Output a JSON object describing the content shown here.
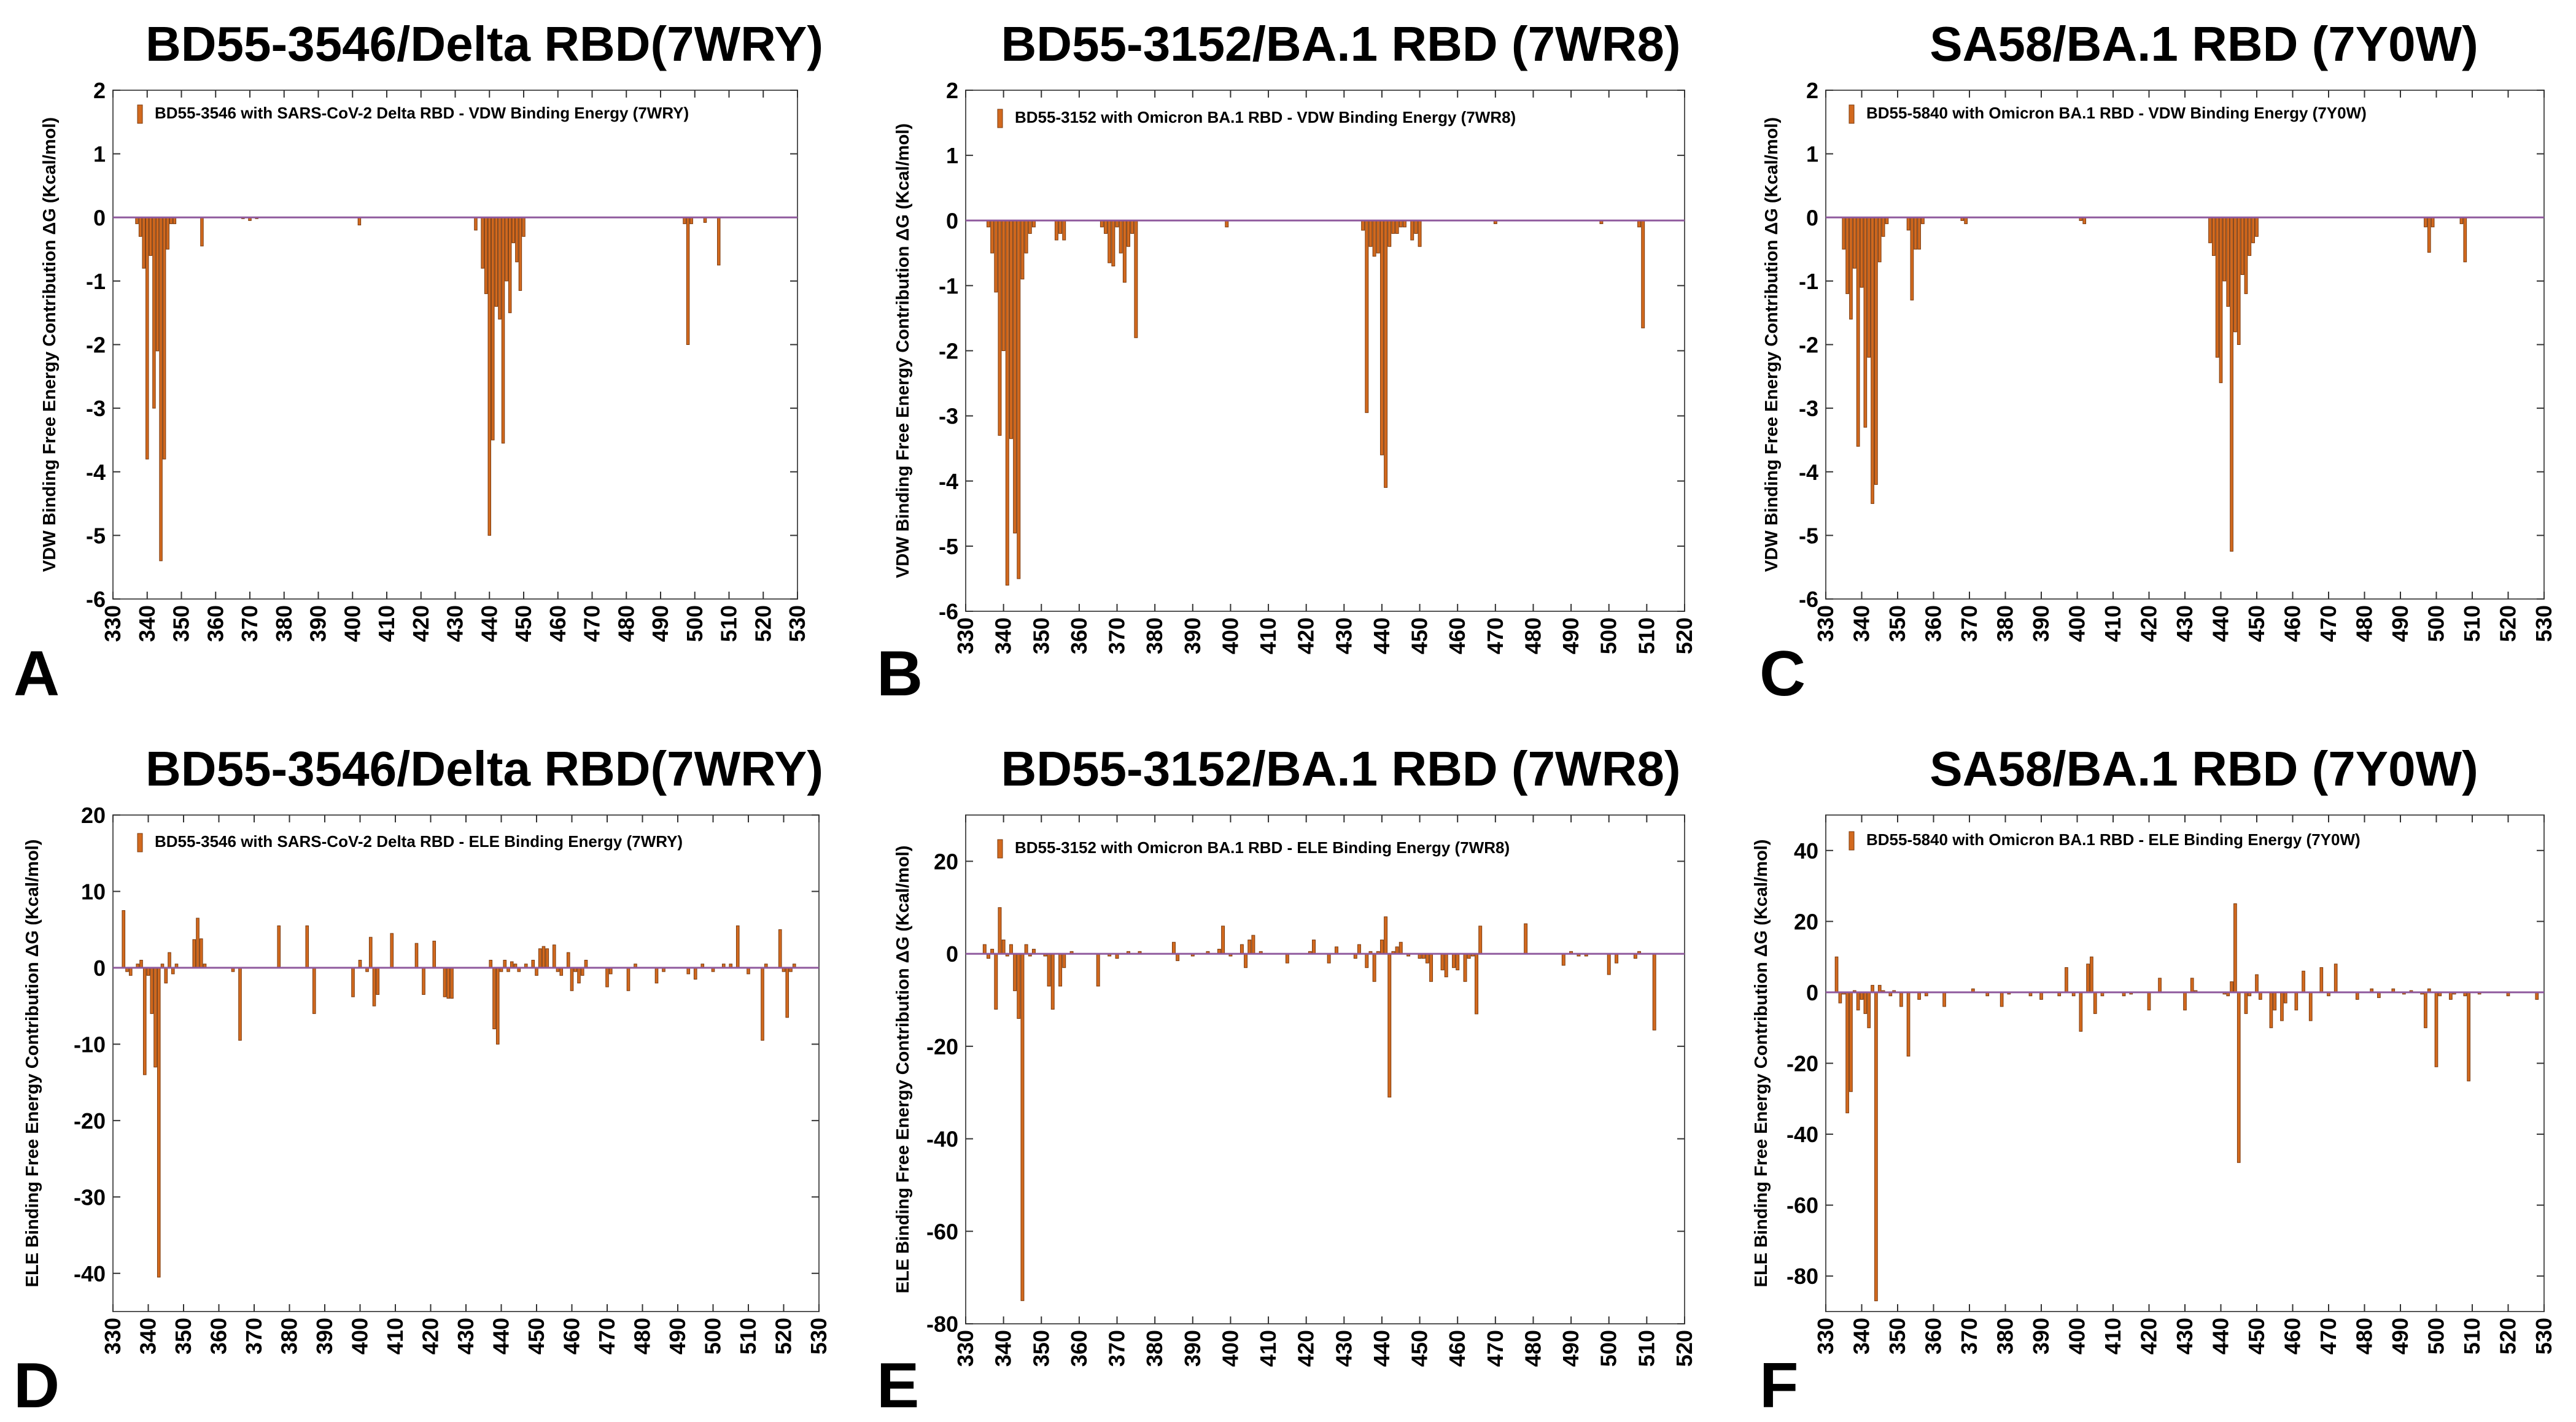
{
  "figure": {
    "bar_color": "#d2691e",
    "bar_edge": "#7a3a0e",
    "baseline_color": "#8f5a9e",
    "frame_color": "#555555"
  },
  "chart_data": [
    {
      "type": "bar",
      "letter": "A",
      "title": "BD55-3546/Delta RBD(7WRY)",
      "legend": "BD55-3546 with SARS-CoV-2 Delta RBD -  VDW Binding Energy (7WRY)",
      "ylabel": "VDW  Binding Free Energy Contribution   ΔG (Kcal/mol)",
      "ylim": [
        -6,
        2
      ],
      "yticks": [
        2,
        1,
        0,
        -1,
        -2,
        -3,
        -4,
        -5,
        -6
      ],
      "xlim": [
        330,
        530
      ],
      "xticks": [
        330,
        340,
        350,
        360,
        370,
        380,
        390,
        400,
        410,
        420,
        430,
        440,
        450,
        460,
        470,
        480,
        490,
        500,
        510,
        520,
        530
      ],
      "residues": [
        337,
        338,
        339,
        340,
        341,
        342,
        343,
        344,
        345,
        346,
        347,
        348,
        356,
        368,
        370,
        372,
        402,
        436,
        438,
        439,
        440,
        441,
        442,
        443,
        444,
        445,
        446,
        447,
        448,
        449,
        450,
        497,
        498,
        499,
        503,
        507
      ],
      "values": [
        -0.1,
        -0.3,
        -0.8,
        -3.8,
        -0.6,
        -3.0,
        -2.1,
        -5.4,
        -3.8,
        -0.5,
        -0.1,
        -0.1,
        -0.45,
        -0.02,
        -0.05,
        -0.02,
        -0.12,
        -0.2,
        -0.8,
        -1.2,
        -5.0,
        -3.5,
        -1.4,
        -1.6,
        -3.55,
        -1.0,
        -1.5,
        -0.4,
        -0.7,
        -1.15,
        -0.3,
        -0.1,
        -2.0,
        -0.1,
        -0.08,
        -0.75
      ]
    },
    {
      "type": "bar",
      "letter": "B",
      "title": "BD55-3152/BA.1 RBD (7WR8)",
      "legend": "BD55-3152 with Omicron BA.1 RBD -  VDW Binding Energy (7WR8)",
      "ylabel": "VDW  Binding Free Energy Contribution   ΔG (Kcal/mol)",
      "ylim": [
        -6,
        2
      ],
      "yticks": [
        2,
        1,
        0,
        -1,
        -2,
        -3,
        -4,
        -5,
        -6
      ],
      "xlim": [
        330,
        520
      ],
      "xticks": [
        330,
        340,
        350,
        360,
        370,
        380,
        390,
        400,
        410,
        420,
        430,
        440,
        450,
        460,
        470,
        480,
        490,
        500,
        510,
        520
      ],
      "residues": [
        336,
        337,
        338,
        339,
        340,
        341,
        342,
        343,
        344,
        345,
        346,
        347,
        348,
        354,
        355,
        356,
        366,
        367,
        368,
        369,
        370,
        371,
        372,
        373,
        374,
        375,
        399,
        435,
        436,
        437,
        438,
        439,
        440,
        441,
        442,
        443,
        444,
        445,
        446,
        448,
        449,
        450,
        470,
        498,
        508,
        509
      ],
      "values": [
        -0.1,
        -0.5,
        -1.1,
        -3.3,
        -2.0,
        -5.6,
        -3.35,
        -4.8,
        -5.5,
        -0.9,
        -0.5,
        -0.2,
        -0.1,
        -0.3,
        -0.2,
        -0.3,
        -0.1,
        -0.2,
        -0.65,
        -0.7,
        -0.1,
        -0.5,
        -0.95,
        -0.4,
        -0.2,
        -1.8,
        -0.1,
        -0.15,
        -2.95,
        -0.4,
        -0.55,
        -0.5,
        -3.6,
        -4.1,
        -0.4,
        -0.2,
        -0.2,
        -0.1,
        -0.1,
        -0.3,
        -0.2,
        -0.4,
        -0.05,
        -0.05,
        -0.1,
        -1.65
      ]
    },
    {
      "type": "bar",
      "letter": "C",
      "title": "SA58/BA.1 RBD (7Y0W)",
      "legend": "BD55-5840 with Omicron BA.1 RBD -  VDW Binding Energy (7Y0W)",
      "ylabel": "VDW Binding Free Energy Contribution   ΔG (Kcal/mol)",
      "ylim": [
        -6,
        2
      ],
      "yticks": [
        2,
        1,
        0,
        -1,
        -2,
        -3,
        -4,
        -5,
        -6
      ],
      "xlim": [
        330,
        530
      ],
      "xticks": [
        330,
        340,
        350,
        360,
        370,
        380,
        390,
        400,
        410,
        420,
        430,
        440,
        450,
        460,
        470,
        480,
        490,
        500,
        510,
        520,
        530
      ],
      "residues": [
        335,
        336,
        337,
        338,
        339,
        340,
        341,
        342,
        343,
        344,
        345,
        346,
        347,
        353,
        354,
        355,
        356,
        357,
        368,
        369,
        401,
        402,
        437,
        438,
        439,
        440,
        441,
        442,
        443,
        444,
        445,
        446,
        447,
        448,
        449,
        450,
        497,
        498,
        499,
        507,
        508
      ],
      "values": [
        -0.5,
        -1.2,
        -1.6,
        -0.8,
        -3.6,
        -1.1,
        -3.3,
        -2.2,
        -4.5,
        -4.2,
        -0.7,
        -0.3,
        -0.1,
        -0.2,
        -1.3,
        -0.5,
        -0.5,
        -0.1,
        -0.05,
        -0.1,
        -0.05,
        -0.1,
        -0.4,
        -0.6,
        -2.2,
        -2.6,
        -1.0,
        -1.4,
        -5.25,
        -1.8,
        -2.0,
        -0.9,
        -1.2,
        -0.6,
        -0.4,
        -0.3,
        -0.15,
        -0.55,
        -0.15,
        -0.1,
        -0.7
      ]
    },
    {
      "type": "bar",
      "letter": "D",
      "title": "BD55-3546/Delta RBD(7WRY)",
      "legend": "BD55-3546 with SARS-CoV-2 Delta RBD -  ELE Binding Energy (7WRY)",
      "ylabel": "ELE Binding Free Energy Contribution   ΔG (Kcal/mol)",
      "ylim": [
        -45,
        20
      ],
      "yticks": [
        20,
        10,
        0,
        -10,
        -20,
        -30,
        -40
      ],
      "xlim": [
        330,
        530
      ],
      "xticks": [
        330,
        340,
        350,
        360,
        370,
        380,
        390,
        400,
        410,
        420,
        430,
        440,
        450,
        460,
        470,
        480,
        490,
        500,
        510,
        520,
        530
      ],
      "residues": [
        333,
        334,
        335,
        337,
        338,
        339,
        340,
        341,
        342,
        343,
        344,
        345,
        346,
        347,
        348,
        353,
        354,
        355,
        356,
        364,
        366,
        377,
        385,
        387,
        398,
        400,
        402,
        403,
        404,
        405,
        409,
        416,
        418,
        421,
        424,
        425,
        426,
        437,
        438,
        439,
        440,
        441,
        442,
        443,
        444,
        445,
        447,
        449,
        450,
        451,
        452,
        453,
        455,
        456,
        457,
        459,
        460,
        461,
        462,
        463,
        464,
        470,
        471,
        476,
        478,
        484,
        486,
        493,
        495,
        497,
        500,
        503,
        505,
        507,
        510,
        514,
        515,
        519,
        520,
        521,
        522,
        523
      ],
      "values": [
        7.5,
        -0.5,
        -1.0,
        0.5,
        1.0,
        -14,
        -1.0,
        -6.0,
        -13.0,
        -40.5,
        0.5,
        -2.0,
        2.0,
        -0.8,
        0.5,
        3.7,
        6.5,
        3.8,
        0.5,
        -0.5,
        -9.5,
        5.5,
        5.5,
        -6.0,
        -3.8,
        1.0,
        -0.5,
        4.0,
        -5.0,
        -3.5,
        4.5,
        3.2,
        -3.5,
        3.5,
        -3.8,
        -4.0,
        -4.0,
        1.0,
        -8.0,
        -10.0,
        -0.5,
        1.0,
        -0.5,
        0.8,
        0.5,
        -0.5,
        0.5,
        1.0,
        -1.0,
        2.5,
        2.8,
        2.5,
        3.0,
        -0.5,
        -1.0,
        2.0,
        -3.0,
        -0.5,
        -2.0,
        -1.0,
        1.0,
        -2.5,
        -0.8,
        -3.0,
        0.5,
        -2.0,
        -0.5,
        -0.8,
        -1.5,
        0.5,
        -0.5,
        0.5,
        0.5,
        5.5,
        -0.8,
        -9.5,
        0.5,
        5.0,
        -0.5,
        -6.5,
        -0.5,
        0.5
      ]
    },
    {
      "type": "bar",
      "letter": "E",
      "title": "BD55-3152/BA.1 RBD (7WR8)",
      "legend": "BD55-3152 with Omicron BA.1 RBD -  ELE Binding Energy (7WR8)",
      "ylabel": "ELE Binding Free Energy Contribution   ΔG (Kcal/mol)",
      "ylim": [
        -80,
        30
      ],
      "yticks": [
        20,
        0,
        -20,
        -40,
        -60,
        -80
      ],
      "xlim": [
        330,
        520
      ],
      "xticks": [
        330,
        340,
        350,
        360,
        370,
        380,
        390,
        400,
        410,
        420,
        430,
        440,
        450,
        460,
        470,
        480,
        490,
        500,
        510,
        520
      ],
      "residues": [
        335,
        336,
        337,
        338,
        339,
        340,
        341,
        342,
        343,
        344,
        345,
        346,
        347,
        348,
        351,
        352,
        353,
        355,
        356,
        358,
        365,
        368,
        370,
        373,
        376,
        385,
        386,
        390,
        394,
        397,
        398,
        400,
        403,
        404,
        405,
        406,
        408,
        415,
        421,
        422,
        426,
        428,
        433,
        434,
        436,
        437,
        438,
        439,
        440,
        441,
        442,
        443,
        444,
        445,
        447,
        450,
        451,
        452,
        453,
        456,
        457,
        459,
        460,
        462,
        463,
        464,
        465,
        466,
        478,
        488,
        490,
        492,
        494,
        500,
        502,
        507,
        508,
        512
      ],
      "values": [
        2.0,
        -1.0,
        1.0,
        -12.0,
        10.0,
        3.0,
        -0.5,
        2.0,
        -8.0,
        -14.0,
        -75.0,
        2.0,
        -0.5,
        1.0,
        -0.5,
        -7.0,
        -12.0,
        -7.0,
        -3.0,
        0.5,
        -7.0,
        -0.5,
        -1.0,
        0.5,
        0.5,
        2.5,
        -1.5,
        -0.5,
        0.5,
        1.0,
        6.0,
        -0.5,
        2.0,
        -3.0,
        3.0,
        4.0,
        0.5,
        -2.0,
        0.5,
        3.0,
        -2.0,
        1.5,
        -1.0,
        2.0,
        -3.0,
        0.5,
        -6.0,
        0.5,
        3.0,
        8.0,
        -31.0,
        0.5,
        1.5,
        2.5,
        -0.5,
        -1.0,
        -1.0,
        -2.0,
        -6.0,
        -3.5,
        -5.0,
        -3.0,
        -3.5,
        -6.0,
        -1.0,
        -0.5,
        -13.0,
        6.0,
        6.5,
        -2.5,
        0.5,
        -0.5,
        -0.5,
        -4.5,
        -2.0,
        -1.0,
        0.5,
        -16.5
      ]
    },
    {
      "type": "bar",
      "letter": "F",
      "title": "SA58/BA.1 RBD (7Y0W)",
      "legend": "BD55-5840 with Omicron BA.1 RBD -  ELE Binding Energy (7Y0W)",
      "ylabel": "ELE Binding Free Energy Contribution   ΔG (Kcal/mol)",
      "ylim": [
        -90,
        50
      ],
      "yticks": [
        40,
        20,
        0,
        -20,
        -40,
        -60,
        -80
      ],
      "xlim": [
        330,
        530
      ],
      "xticks": [
        330,
        340,
        350,
        360,
        370,
        380,
        390,
        400,
        410,
        420,
        430,
        440,
        450,
        460,
        470,
        480,
        490,
        500,
        510,
        520,
        530
      ],
      "residues": [
        333,
        334,
        335,
        336,
        337,
        338,
        339,
        340,
        341,
        342,
        343,
        344,
        345,
        346,
        348,
        349,
        351,
        353,
        356,
        358,
        363,
        371,
        375,
        379,
        381,
        387,
        390,
        395,
        397,
        399,
        401,
        403,
        404,
        405,
        407,
        413,
        415,
        420,
        423,
        430,
        432,
        433,
        441,
        442,
        443,
        444,
        445,
        447,
        448,
        450,
        451,
        454,
        455,
        457,
        458,
        461,
        463,
        465,
        468,
        470,
        472,
        478,
        482,
        484,
        488,
        491,
        493,
        496,
        497,
        498,
        500,
        501,
        504,
        505,
        508,
        509,
        512,
        520,
        528
      ],
      "values": [
        10.0,
        -3.0,
        -0.5,
        -34.0,
        -28.0,
        0.5,
        -5.0,
        -2.0,
        -6.0,
        -10.0,
        2.0,
        -87.0,
        2.0,
        0.5,
        -1.0,
        0.5,
        -4.0,
        -18.0,
        -2.0,
        -1.0,
        -4.0,
        1.0,
        -1.0,
        -4.0,
        -0.5,
        -1.0,
        -2.0,
        -1.0,
        7.0,
        -1.0,
        -11.0,
        8.0,
        10.0,
        -6.0,
        -1.0,
        -1.0,
        -0.5,
        -5.0,
        4.0,
        -5.0,
        4.0,
        0.5,
        -0.5,
        -1.0,
        3.0,
        25.0,
        -48.0,
        -6.0,
        -1.0,
        5.0,
        -2.0,
        -10.0,
        -5.0,
        -8.0,
        -3.0,
        -5.0,
        6.0,
        -8.0,
        7.0,
        -1.0,
        8.0,
        -2.0,
        1.0,
        -1.5,
        1.0,
        -0.5,
        0.5,
        -0.5,
        -10.0,
        1.0,
        -21.0,
        -1.0,
        -2.0,
        -0.5,
        -1.0,
        -25.0,
        -0.5,
        -1.0,
        -2.0
      ]
    }
  ]
}
